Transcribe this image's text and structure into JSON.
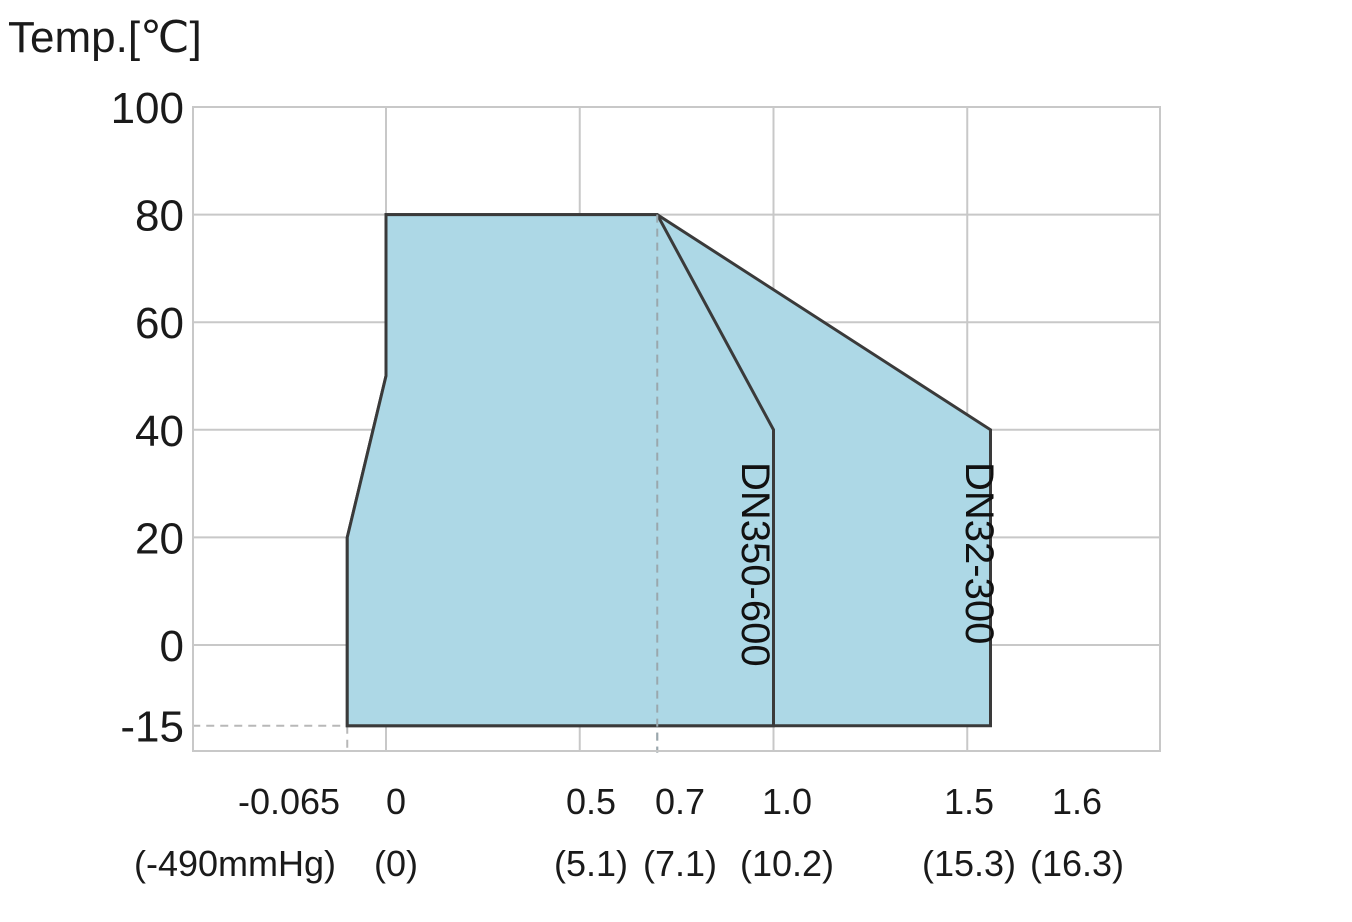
{
  "chart_data": {
    "type": "area",
    "title": "",
    "ylabel": "Temp.[℃]",
    "xlabel": "",
    "ylim": [
      -20,
      100
    ],
    "yticks": [
      100,
      80,
      60,
      40,
      20,
      0,
      -15
    ],
    "grid": true,
    "x_ticks": [
      {
        "value": -0.065,
        "label": "-0.065",
        "sublabel": "(-490mmHg)",
        "gridline": false
      },
      {
        "value": 0,
        "label": "0",
        "sublabel": "(0)",
        "gridline": true
      },
      {
        "value": 0.5,
        "label": "0.5",
        "sublabel": "(5.1)",
        "gridline": true
      },
      {
        "value": 0.7,
        "label": "0.7",
        "sublabel": "(7.1)",
        "gridline": false
      },
      {
        "value": 1.0,
        "label": "1.0",
        "sublabel": "(10.2)",
        "gridline": true
      },
      {
        "value": 1.5,
        "label": "1.5",
        "sublabel": "(15.3)",
        "gridline": true
      },
      {
        "value": 1.6,
        "label": "1.6",
        "sublabel": "(16.3)",
        "gridline": false
      }
    ],
    "series": [
      {
        "name": "DN32-300",
        "color": "#add8e6",
        "points": [
          [
            -0.1,
            -15
          ],
          [
            -0.1,
            20
          ],
          [
            0,
            50
          ],
          [
            0,
            80
          ],
          [
            0.7,
            80
          ],
          [
            1.56,
            40
          ],
          [
            1.56,
            -15
          ]
        ]
      },
      {
        "name": "DN350-600",
        "color": "#add8e6",
        "points": [
          [
            -0.1,
            -15
          ],
          [
            -0.1,
            20
          ],
          [
            0,
            50
          ],
          [
            0,
            80
          ],
          [
            0.7,
            80
          ],
          [
            1.0,
            40
          ],
          [
            1.0,
            -15
          ]
        ]
      }
    ],
    "reference_lines": [
      {
        "orientation": "vertical",
        "x": 0.7,
        "from_y": -20,
        "to_y": 80
      },
      {
        "orientation": "vertical",
        "x": -0.1,
        "from_y": -20,
        "to_y": -15
      },
      {
        "orientation": "horizontal",
        "y": -15,
        "from_x": -0.5,
        "to_x": -0.1
      }
    ]
  }
}
